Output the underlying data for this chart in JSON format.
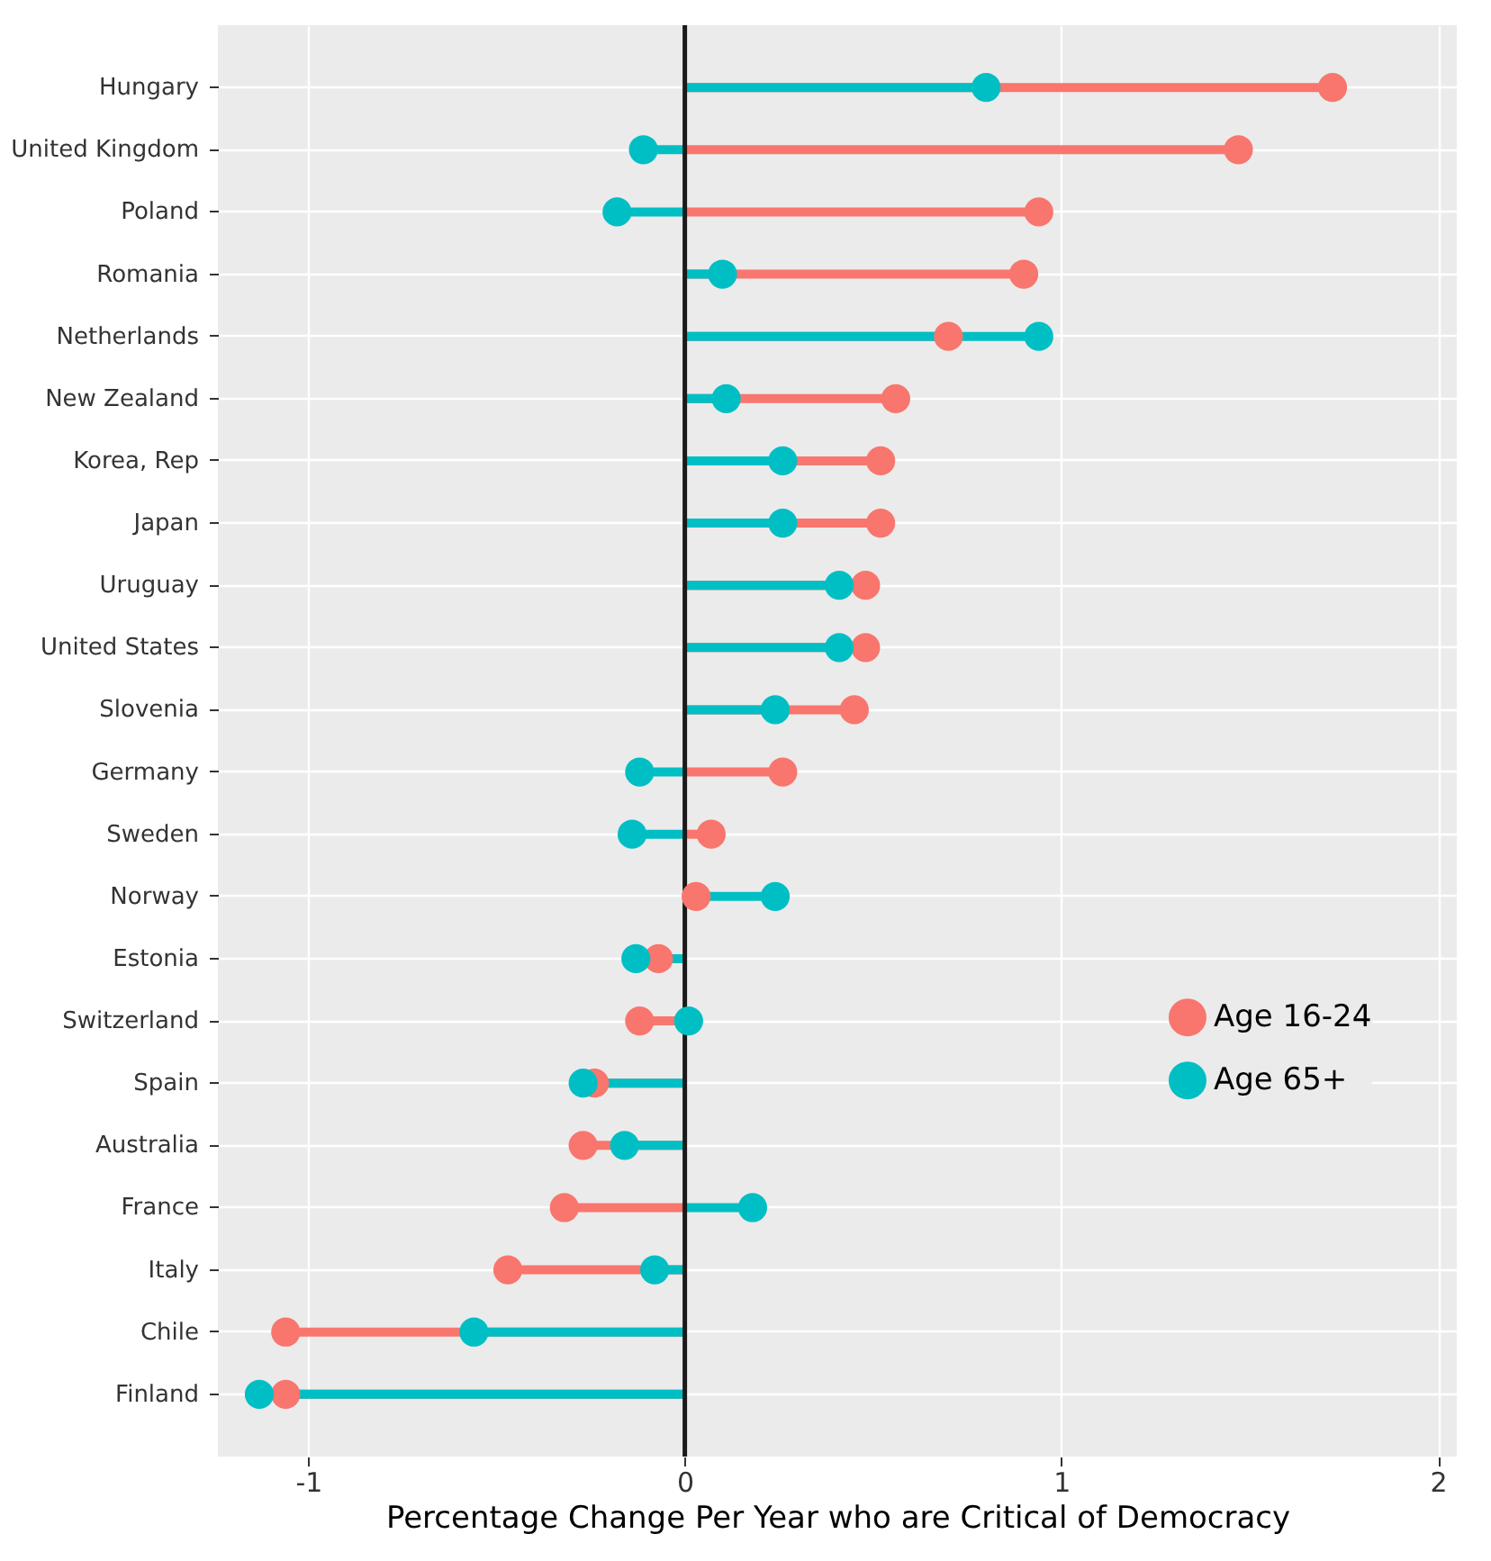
{
  "chart_data": {
    "type": "lollipop",
    "orientation": "horizontal",
    "xlabel": "Percentage Change Per Year who are Critical of Democracy",
    "categories": [
      "Hungary",
      "United Kingdom",
      "Poland",
      "Romania",
      "Netherlands",
      "New Zealand",
      "Korea, Rep",
      "Japan",
      "Uruguay",
      "United States",
      "Slovenia",
      "Germany",
      "Sweden",
      "Norway",
      "Estonia",
      "Switzerland",
      "Spain",
      "Australia",
      "France",
      "Italy",
      "Chile",
      "Finland"
    ],
    "series": [
      {
        "name": "Age 16-24",
        "color": "#f8766d",
        "values": [
          1.72,
          1.47,
          0.94,
          0.9,
          0.7,
          0.56,
          0.52,
          0.52,
          0.48,
          0.48,
          0.45,
          0.26,
          0.07,
          0.03,
          -0.07,
          -0.12,
          -0.24,
          -0.27,
          -0.32,
          -0.47,
          -1.06,
          -1.06
        ]
      },
      {
        "name": "Age 65+",
        "color": "#00bfc4",
        "values": [
          0.8,
          -0.11,
          -0.18,
          0.1,
          0.94,
          0.11,
          0.26,
          0.26,
          0.41,
          0.41,
          0.24,
          -0.12,
          -0.14,
          0.24,
          -0.13,
          0.01,
          -0.27,
          -0.16,
          0.18,
          -0.08,
          -0.56,
          -1.13
        ]
      }
    ],
    "xlim": [
      -1.24,
      2.05
    ],
    "xticks": [
      -1,
      0,
      1,
      2
    ],
    "ref_lines": [
      {
        "axis": "x",
        "value": 0,
        "color": "#1a1a1a"
      }
    ],
    "grid": true,
    "legend": "right",
    "marker": "circle"
  }
}
